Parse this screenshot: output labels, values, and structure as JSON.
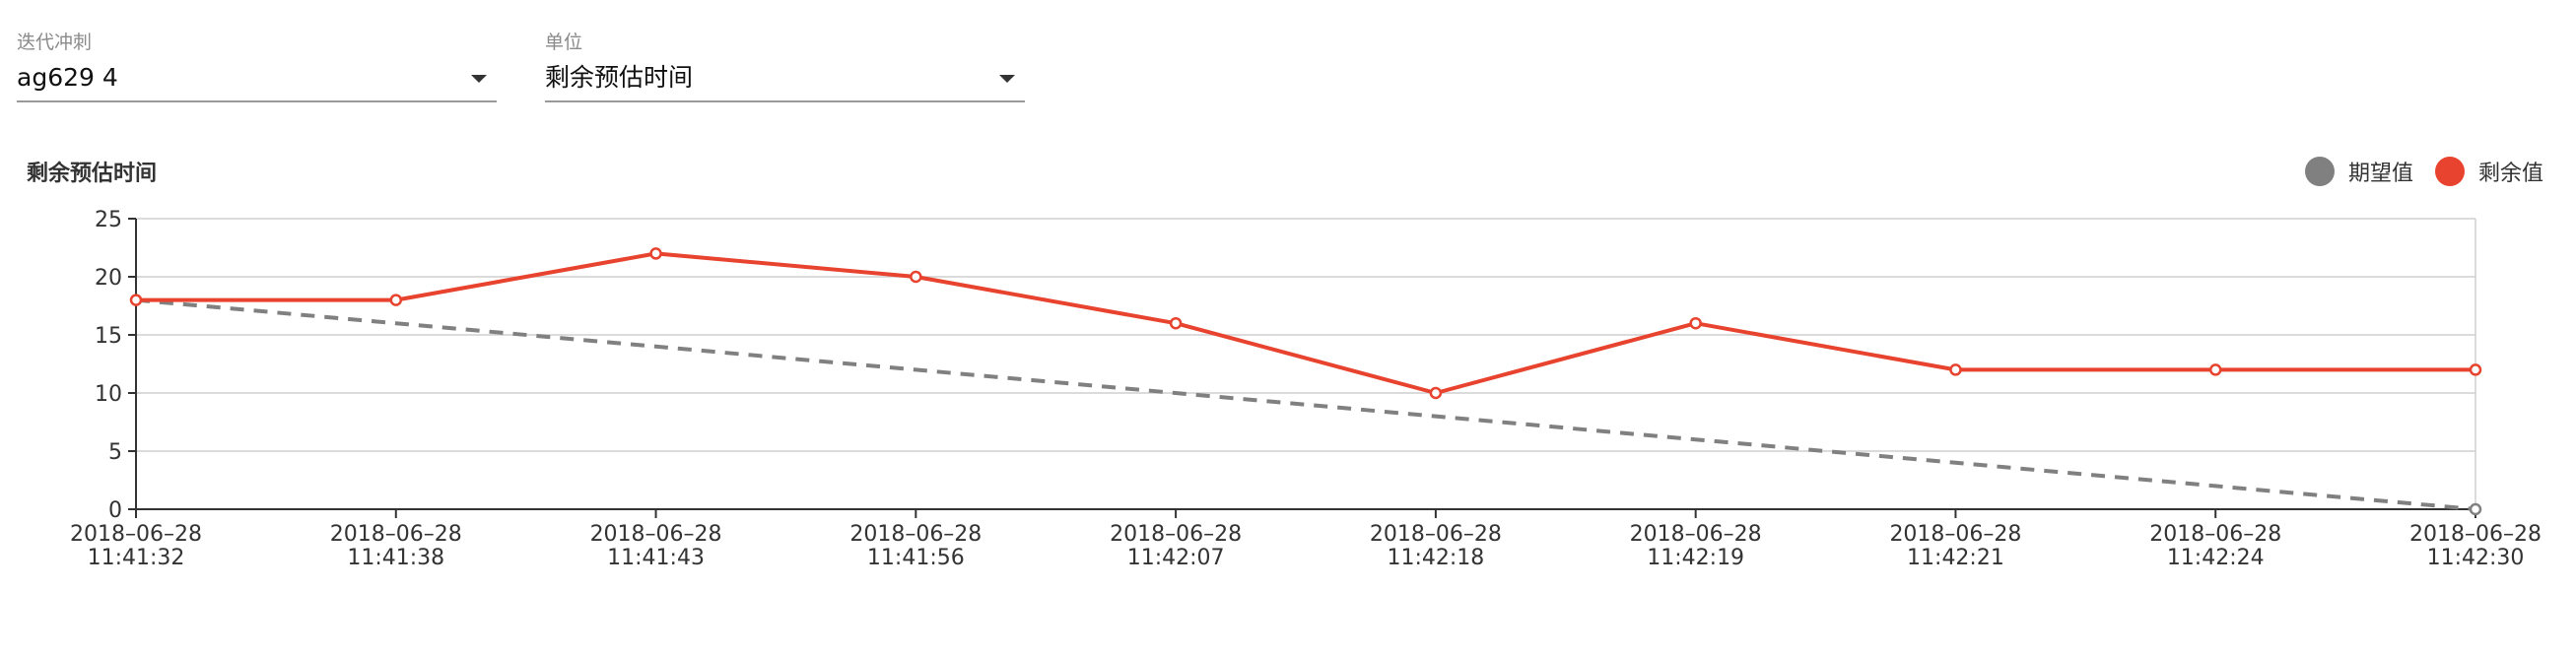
{
  "filters": {
    "sprint": {
      "label": "迭代冲刺",
      "value": "ag629 4"
    },
    "unit": {
      "label": "单位",
      "value": "剩余预估时间"
    }
  },
  "chart_data": {
    "type": "line",
    "title": "剩余预估时间",
    "xlabel": "",
    "ylabel": "",
    "categories": [
      [
        "2018–06–28",
        "11:41:32"
      ],
      [
        "2018–06–28",
        "11:41:38"
      ],
      [
        "2018–06–28",
        "11:41:43"
      ],
      [
        "2018–06–28",
        "11:41:56"
      ],
      [
        "2018–06–28",
        "11:42:07"
      ],
      [
        "2018–06–28",
        "11:42:18"
      ],
      [
        "2018–06–28",
        "11:42:19"
      ],
      [
        "2018–06–28",
        "11:42:21"
      ],
      [
        "2018–06–28",
        "11:42:24"
      ],
      [
        "2018–06–28",
        "11:42:30"
      ]
    ],
    "ylim": [
      0,
      25
    ],
    "yticks": [
      0,
      5,
      10,
      15,
      20,
      25
    ],
    "grid": true,
    "legend_position": "top-right",
    "series": [
      {
        "name": "期望值",
        "color": "#808080",
        "style": "dashed",
        "values": [
          18,
          16,
          14,
          12,
          10,
          8,
          6,
          4,
          2,
          0
        ]
      },
      {
        "name": "剩余值",
        "color": "#e8432e",
        "style": "solid",
        "values": [
          18,
          18,
          22,
          20,
          16,
          10,
          16,
          12,
          12,
          12
        ]
      }
    ]
  }
}
